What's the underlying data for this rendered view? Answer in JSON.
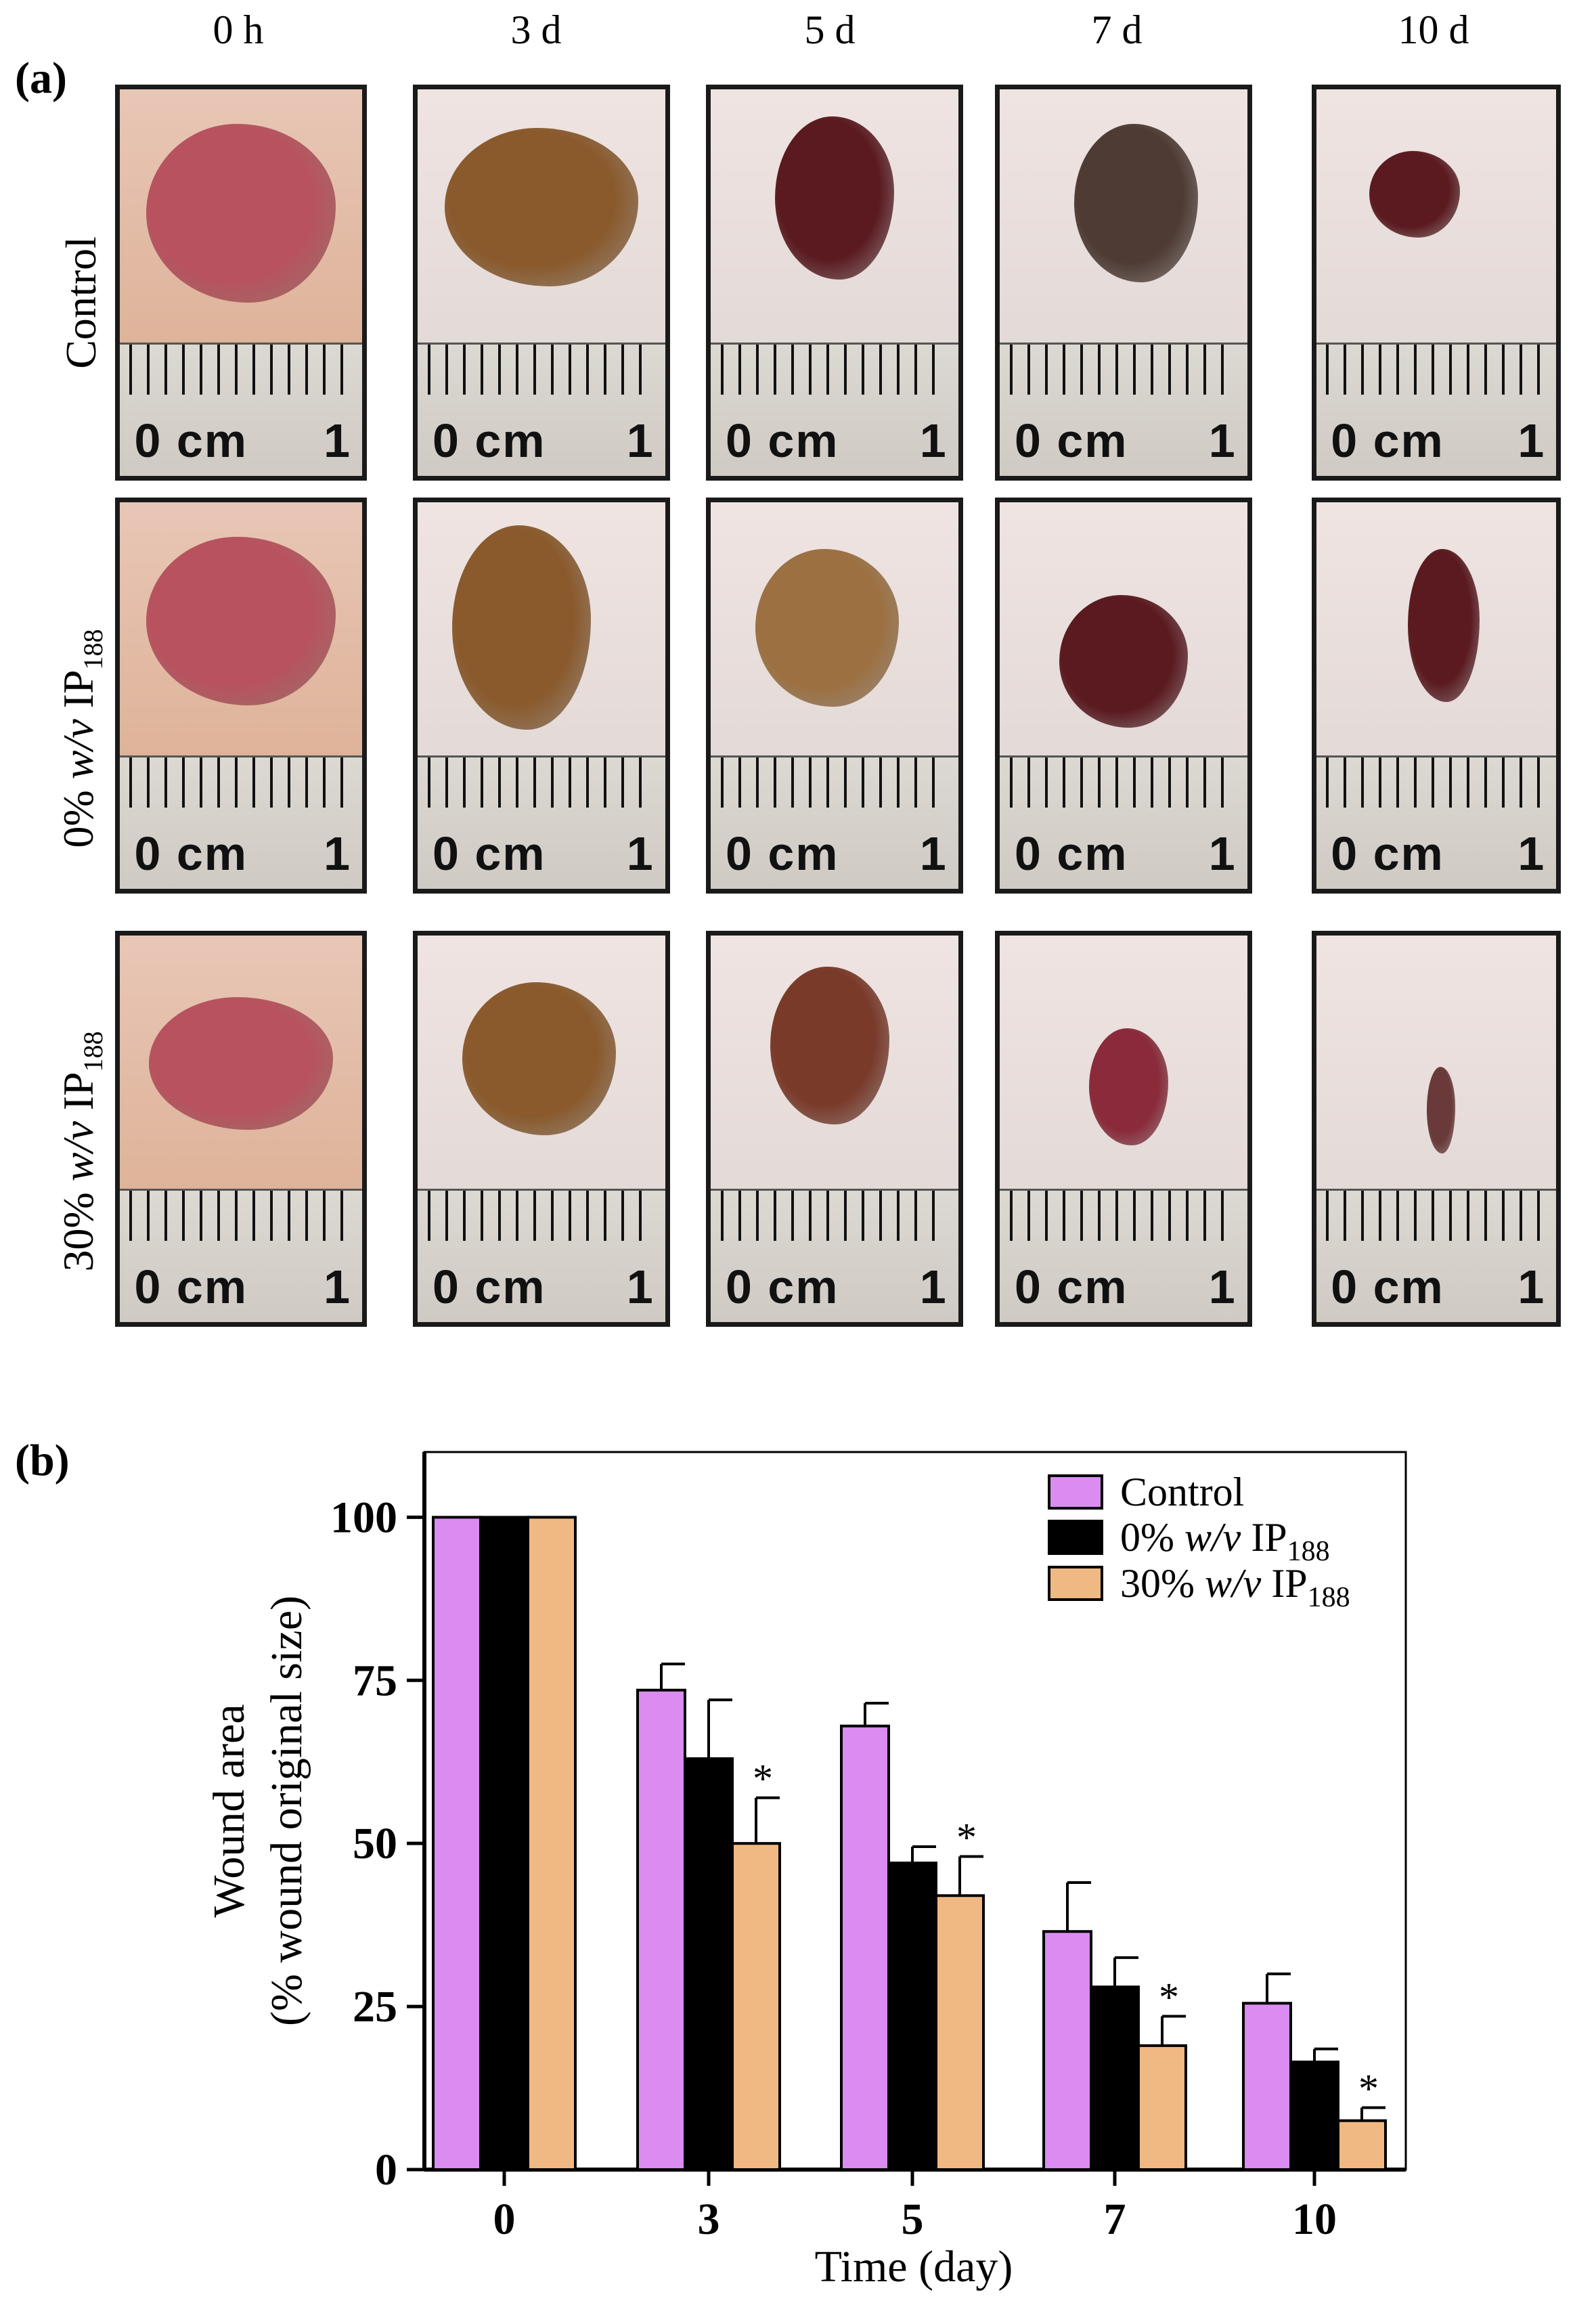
{
  "panel_a": {
    "label": "(a)",
    "columns": [
      "0 h",
      "3 d",
      "5 d",
      "7 d",
      "10 d"
    ],
    "rows": [
      {
        "label": "Control",
        "italic": "",
        "sub": ""
      },
      {
        "label": "0% ",
        "italic": "w/v",
        "tail": "  IP",
        "sub": "188"
      },
      {
        "label": "30% ",
        "italic": "w/v",
        "tail": "  IP",
        "sub": "188"
      }
    ],
    "ruler": {
      "zero": "0 cm",
      "one": "1"
    }
  },
  "panel_b": {
    "label": "(b)"
  },
  "colors": {
    "control": "#da8cf0",
    "zero": "#000000",
    "thirty": "#f0b882",
    "skin": "#e9ddd8",
    "wound_fresh": "#b8525e",
    "wound_scab": "#8a5a2c",
    "wound_dark": "#5a1a20"
  },
  "chart_data": {
    "type": "bar",
    "title": "",
    "xlabel": "Time (day)",
    "ylabel_line1": "Wound area",
    "ylabel_line2": "(% wound original size)",
    "categories": [
      "0",
      "3",
      "5",
      "7",
      "10"
    ],
    "ylim": [
      0,
      110
    ],
    "yticks": [
      0,
      25,
      50,
      75,
      100
    ],
    "series": [
      {
        "name": "Control",
        "name_italic": "",
        "name_tail": "",
        "name_sub": "",
        "values": [
          100,
          73.5,
          68,
          36.5,
          25.5
        ],
        "errors": [
          0,
          4,
          3.5,
          7.5,
          4.5
        ],
        "sig": [
          false,
          false,
          false,
          false,
          false
        ]
      },
      {
        "name": "0% ",
        "name_italic": "w/v",
        "name_tail": " IP",
        "name_sub": "188",
        "values": [
          100,
          63,
          47,
          28,
          16.5
        ],
        "errors": [
          0,
          9,
          2.5,
          4.5,
          2
        ],
        "sig": [
          false,
          false,
          false,
          false,
          false
        ]
      },
      {
        "name": "30% ",
        "name_italic": "w/v",
        "name_tail": " IP",
        "name_sub": "188",
        "values": [
          100,
          50,
          42,
          19,
          7.5
        ],
        "errors": [
          0,
          7,
          6,
          4.5,
          2
        ],
        "sig": [
          false,
          true,
          true,
          true,
          true
        ]
      }
    ],
    "sig_marker": "*",
    "legend_position": "top-right"
  }
}
